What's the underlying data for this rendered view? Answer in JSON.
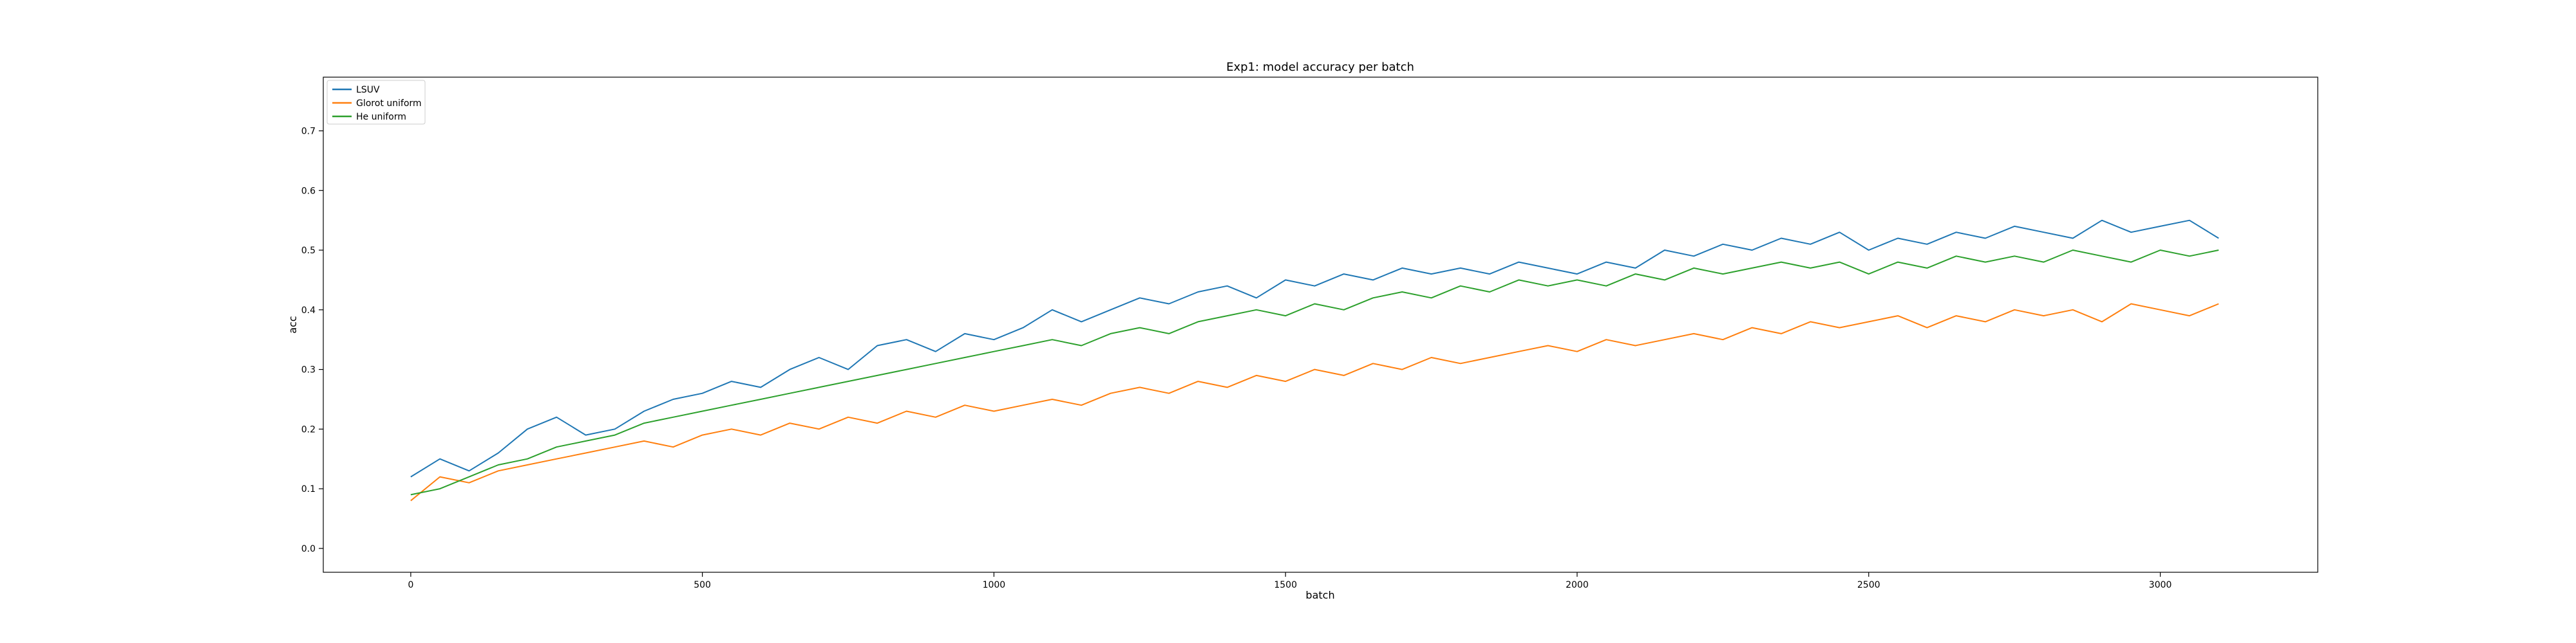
{
  "chart_data": {
    "type": "line",
    "title": "Exp1: model accuracy per batch",
    "xlabel": "batch",
    "ylabel": "acc",
    "xlim": [
      -150,
      3270
    ],
    "ylim": [
      -0.04,
      0.79
    ],
    "xticks": [
      0,
      500,
      1000,
      1500,
      2000,
      2500,
      3000
    ],
    "yticks": [
      0.0,
      0.1,
      0.2,
      0.3,
      0.4,
      0.5,
      0.6,
      0.7
    ],
    "grid": false,
    "legend_position": "top-left",
    "series": [
      {
        "name": "LSUV",
        "color": "#1f77b4",
        "x": [
          0,
          50,
          100,
          150,
          200,
          250,
          300,
          350,
          400,
          450,
          500,
          550,
          600,
          650,
          700,
          750,
          800,
          850,
          900,
          950,
          1000,
          1050,
          1100,
          1150,
          1200,
          1250,
          1300,
          1350,
          1400,
          1450,
          1500,
          1550,
          1600,
          1650,
          1700,
          1750,
          1800,
          1850,
          1900,
          1950,
          2000,
          2050,
          2100,
          2150,
          2200,
          2250,
          2300,
          2350,
          2400,
          2450,
          2500,
          2550,
          2600,
          2650,
          2700,
          2750,
          2800,
          2850,
          2900,
          2950,
          3000,
          3050,
          3100
        ],
        "y": [
          0.12,
          0.15,
          0.13,
          0.16,
          0.2,
          0.22,
          0.19,
          0.2,
          0.23,
          0.25,
          0.26,
          0.28,
          0.27,
          0.3,
          0.32,
          0.3,
          0.34,
          0.35,
          0.33,
          0.36,
          0.35,
          0.37,
          0.4,
          0.38,
          0.4,
          0.42,
          0.41,
          0.43,
          0.44,
          0.42,
          0.45,
          0.44,
          0.46,
          0.45,
          0.47,
          0.46,
          0.47,
          0.46,
          0.48,
          0.47,
          0.46,
          0.48,
          0.47,
          0.5,
          0.49,
          0.51,
          0.5,
          0.52,
          0.51,
          0.53,
          0.5,
          0.52,
          0.51,
          0.53,
          0.52,
          0.54,
          0.53,
          0.52,
          0.55,
          0.53,
          0.54,
          0.55,
          0.52
        ]
      },
      {
        "name": "Glorot uniform",
        "color": "#ff7f0e",
        "x": [
          0,
          50,
          100,
          150,
          200,
          250,
          300,
          350,
          400,
          450,
          500,
          550,
          600,
          650,
          700,
          750,
          800,
          850,
          900,
          950,
          1000,
          1050,
          1100,
          1150,
          1200,
          1250,
          1300,
          1350,
          1400,
          1450,
          1500,
          1550,
          1600,
          1650,
          1700,
          1750,
          1800,
          1850,
          1900,
          1950,
          2000,
          2050,
          2100,
          2150,
          2200,
          2250,
          2300,
          2350,
          2400,
          2450,
          2500,
          2550,
          2600,
          2650,
          2700,
          2750,
          2800,
          2850,
          2900,
          2950,
          3000,
          3050,
          3100
        ],
        "y": [
          0.08,
          0.12,
          0.11,
          0.13,
          0.14,
          0.15,
          0.16,
          0.17,
          0.18,
          0.17,
          0.19,
          0.2,
          0.19,
          0.21,
          0.2,
          0.22,
          0.21,
          0.23,
          0.22,
          0.24,
          0.23,
          0.24,
          0.25,
          0.24,
          0.26,
          0.27,
          0.26,
          0.28,
          0.27,
          0.29,
          0.28,
          0.3,
          0.29,
          0.31,
          0.3,
          0.32,
          0.31,
          0.32,
          0.33,
          0.34,
          0.33,
          0.35,
          0.34,
          0.35,
          0.36,
          0.35,
          0.37,
          0.36,
          0.38,
          0.37,
          0.38,
          0.39,
          0.37,
          0.39,
          0.38,
          0.4,
          0.39,
          0.4,
          0.38,
          0.41,
          0.4,
          0.39,
          0.41
        ]
      },
      {
        "name": "He uniform",
        "color": "#2ca02c",
        "x": [
          0,
          50,
          100,
          150,
          200,
          250,
          300,
          350,
          400,
          450,
          500,
          550,
          600,
          650,
          700,
          750,
          800,
          850,
          900,
          950,
          1000,
          1050,
          1100,
          1150,
          1200,
          1250,
          1300,
          1350,
          1400,
          1450,
          1500,
          1550,
          1600,
          1650,
          1700,
          1750,
          1800,
          1850,
          1900,
          1950,
          2000,
          2050,
          2100,
          2150,
          2200,
          2250,
          2300,
          2350,
          2400,
          2450,
          2500,
          2550,
          2600,
          2650,
          2700,
          2750,
          2800,
          2850,
          2900,
          2950,
          3000,
          3050,
          3100
        ],
        "y": [
          0.09,
          0.1,
          0.12,
          0.14,
          0.15,
          0.17,
          0.18,
          0.19,
          0.21,
          0.22,
          0.23,
          0.24,
          0.25,
          0.26,
          0.27,
          0.28,
          0.29,
          0.3,
          0.31,
          0.32,
          0.33,
          0.34,
          0.35,
          0.34,
          0.36,
          0.37,
          0.36,
          0.38,
          0.39,
          0.4,
          0.39,
          0.41,
          0.4,
          0.42,
          0.43,
          0.42,
          0.44,
          0.43,
          0.45,
          0.44,
          0.45,
          0.44,
          0.46,
          0.45,
          0.47,
          0.46,
          0.47,
          0.48,
          0.47,
          0.48,
          0.46,
          0.48,
          0.47,
          0.49,
          0.48,
          0.49,
          0.48,
          0.5,
          0.49,
          0.48,
          0.5,
          0.49,
          0.5
        ]
      }
    ]
  }
}
